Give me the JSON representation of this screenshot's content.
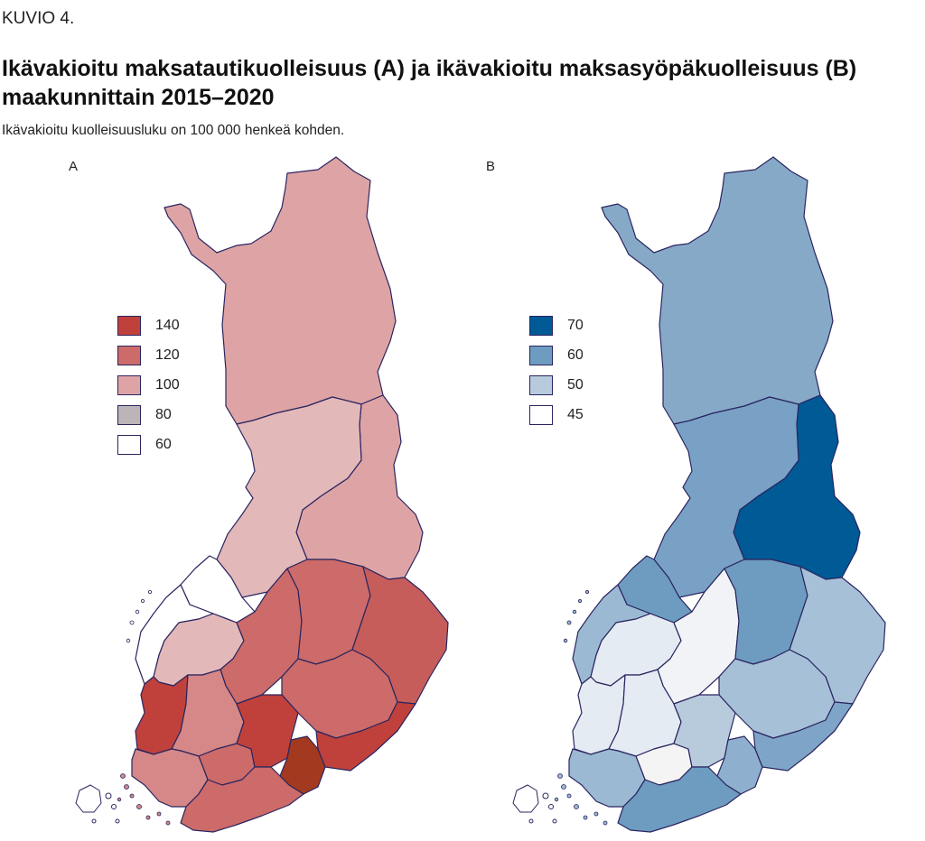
{
  "figure_label": "KUVIO 4.",
  "title": "Ikävakioitu maksatautikuolleisuus (A) ja ikävakioitu maksasyöpäkuolleisuus (B) maakunnittain 2015–2020",
  "subtitle": "Ikävakioitu kuolleisuusluku on 100 000 henkeä kohden.",
  "colors": {
    "border": "#2a2560",
    "a": {
      "140": "#c0413b",
      "120": "#cc6b69",
      "100": "#dea4a5",
      "80": "#bcb4b6",
      "60": "#ffffff",
      "dark": "#a33a1f"
    },
    "b": {
      "70": "#005a96",
      "60": "#6e9cc0",
      "50": "#b8cbdd",
      "45": "#ffffff"
    }
  },
  "panels": [
    {
      "label": "A",
      "legend": [
        {
          "label": "140",
          "color": "#c0413b"
        },
        {
          "label": "120",
          "color": "#cc6b69"
        },
        {
          "label": "100",
          "color": "#dea4a5"
        },
        {
          "label": "80",
          "color": "#bcb4b6"
        },
        {
          "label": "60",
          "color": "#ffffff"
        }
      ]
    },
    {
      "label": "B",
      "legend": [
        {
          "label": "70",
          "color": "#005a96"
        },
        {
          "label": "60",
          "color": "#6e9cc0"
        },
        {
          "label": "50",
          "color": "#b8cbdd"
        },
        {
          "label": "45",
          "color": "#ffffff"
        }
      ]
    }
  ]
}
